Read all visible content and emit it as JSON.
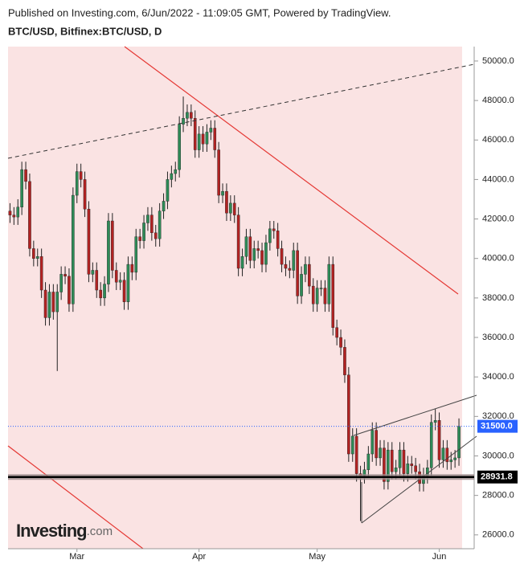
{
  "header": "Published on Investing.com, 6/Jun/2022 - 11:09:05 GMT, Powered by TradingView.",
  "logo": {
    "text": "Investing",
    "suffix": ".com"
  },
  "chart_data": {
    "type": "candlestick",
    "title": "BTC/USD, Bitfinex:BTC/USD, D",
    "categories": [
      null,
      null,
      null,
      null,
      null,
      null,
      null,
      null,
      null,
      null,
      null,
      null,
      null,
      null,
      null,
      null,
      null,
      "Mar",
      null,
      null,
      null,
      null,
      null,
      null,
      null,
      null,
      null,
      null,
      null,
      null,
      null,
      null,
      null,
      null,
      null,
      null,
      null,
      null,
      null,
      null,
      null,
      null,
      null,
      null,
      null,
      null,
      null,
      null,
      "Apr",
      null,
      null,
      null,
      null,
      null,
      null,
      null,
      null,
      null,
      null,
      null,
      null,
      null,
      null,
      null,
      null,
      null,
      null,
      null,
      null,
      null,
      null,
      null,
      null,
      null,
      null,
      null,
      null,
      null,
      "May",
      null,
      null,
      null,
      null,
      null,
      null,
      null,
      null,
      null,
      null,
      null,
      null,
      null,
      null,
      null,
      null,
      null,
      null,
      null,
      null,
      null,
      null,
      null,
      null,
      null,
      null,
      null,
      null,
      null,
      null,
      "Jun",
      null,
      null,
      null,
      null,
      null
    ],
    "open": [
      42400,
      42200,
      42100,
      42600,
      44500,
      43900,
      40500,
      40000,
      40100,
      38400,
      37000,
      38300,
      37300,
      38300,
      39200,
      39100,
      37700,
      43200,
      44400,
      44000,
      42500,
      39200,
      39400,
      38400,
      38000,
      38700,
      41900,
      39400,
      38800,
      38900,
      37800,
      39700,
      39300,
      41100,
      40900,
      41800,
      42200,
      41300,
      41000,
      42400,
      42900,
      44000,
      44300,
      44500,
      46800,
      47100,
      47400,
      47100,
      45500,
      46300,
      45800,
      46400,
      46600,
      45500,
      43200,
      43400,
      42300,
      42800,
      42200,
      39500,
      40100,
      41100,
      39900,
      40500,
      40400,
      39700,
      40800,
      41500,
      41400,
      40500,
      39700,
      39500,
      39400,
      40400,
      38100,
      39200,
      39700,
      38600,
      37700,
      38500,
      38500,
      37700,
      39700,
      36500,
      36000,
      35500,
      34100,
      30100,
      31000,
      29100,
      29000,
      29300,
      30100,
      31300,
      29900,
      30400,
      28700,
      30300,
      29200,
      29400,
      30300,
      29100,
      29600,
      29500,
      29200,
      28600,
      29000,
      29400,
      31700,
      31800,
      29800,
      30400,
      29700,
      29800,
      29900
    ],
    "high": [
      42800,
      42600,
      43000,
      44900,
      44900,
      44300,
      40900,
      40500,
      40500,
      38800,
      38700,
      38700,
      38700,
      39600,
      39600,
      39500,
      43600,
      44800,
      44800,
      44400,
      42900,
      39800,
      39800,
      38800,
      39100,
      42300,
      42300,
      39800,
      39300,
      39300,
      40100,
      40100,
      41500,
      41500,
      42200,
      42600,
      42600,
      41700,
      42800,
      43300,
      44400,
      44700,
      44900,
      47200,
      48200,
      47800,
      47800,
      47500,
      46700,
      46700,
      46800,
      47000,
      47000,
      45900,
      43800,
      43800,
      43200,
      43200,
      42600,
      40500,
      41500,
      41500,
      40900,
      40900,
      40800,
      41200,
      41900,
      41900,
      41800,
      40900,
      40100,
      39900,
      40800,
      40800,
      39600,
      40100,
      40100,
      39000,
      38900,
      38900,
      38900,
      40100,
      40100,
      36900,
      36400,
      35900,
      34500,
      31400,
      31400,
      29500,
      29700,
      30500,
      31700,
      31700,
      30800,
      30800,
      30700,
      30700,
      29800,
      30700,
      30700,
      30000,
      30000,
      29900,
      29600,
      29400,
      29800,
      32100,
      32400,
      32200,
      30800,
      30800,
      30200,
      30300,
      31900
    ],
    "low": [
      41800,
      41700,
      41700,
      42200,
      43500,
      40100,
      39600,
      39600,
      38000,
      36600,
      36600,
      36900,
      34300,
      37900,
      38700,
      37300,
      37300,
      42800,
      43600,
      42100,
      38800,
      38800,
      38000,
      37600,
      37600,
      38300,
      39000,
      38400,
      38400,
      37400,
      37400,
      38900,
      38900,
      40500,
      40500,
      41400,
      40900,
      40600,
      40600,
      42000,
      42500,
      43600,
      43900,
      44100,
      46400,
      46700,
      46700,
      45100,
      45100,
      45400,
      45400,
      46000,
      45100,
      42800,
      42800,
      41900,
      41900,
      41800,
      39100,
      39100,
      39700,
      39500,
      39500,
      40000,
      39300,
      39300,
      40400,
      41000,
      40100,
      39300,
      39100,
      39000,
      39000,
      37700,
      37700,
      38800,
      38200,
      37300,
      37300,
      38100,
      37300,
      37300,
      36100,
      35600,
      35100,
      33700,
      29700,
      29700,
      28700,
      26700,
      28600,
      28900,
      29700,
      29500,
      29500,
      28300,
      28300,
      28800,
      28800,
      29000,
      28700,
      28700,
      29100,
      28800,
      28200,
      28200,
      28600,
      29000,
      31300,
      29400,
      29400,
      29300,
      29300,
      29400,
      29500
    ],
    "close": [
      42200,
      42100,
      42600,
      44500,
      43900,
      40500,
      40000,
      40100,
      38400,
      37000,
      38300,
      37300,
      38300,
      39200,
      39100,
      37700,
      43200,
      44400,
      44000,
      42500,
      39200,
      39400,
      38400,
      38000,
      38700,
      41900,
      39400,
      38800,
      38900,
      37800,
      39700,
      39300,
      41100,
      40900,
      41800,
      42200,
      41300,
      41000,
      42400,
      42900,
      44000,
      44300,
      44500,
      46800,
      47100,
      47400,
      47100,
      45500,
      46300,
      45800,
      46400,
      46600,
      45500,
      43200,
      43400,
      42300,
      42800,
      42200,
      39500,
      40100,
      41100,
      39900,
      40500,
      40400,
      39700,
      40800,
      41500,
      41400,
      40500,
      39700,
      39500,
      39400,
      40400,
      38100,
      39200,
      39700,
      38600,
      37700,
      38500,
      38500,
      37700,
      39700,
      36500,
      36000,
      35500,
      34100,
      30100,
      31000,
      29100,
      29000,
      29300,
      30100,
      31300,
      29900,
      30400,
      28700,
      30300,
      29200,
      29400,
      30300,
      29100,
      29600,
      29500,
      29200,
      28600,
      29000,
      29400,
      31700,
      31800,
      29800,
      30400,
      29700,
      29800,
      29900,
      31500
    ],
    "up_color": "#2e8b57",
    "down_color": "#b22222",
    "ylim": [
      25300,
      50730
    ],
    "yticks": [
      {
        "value": 26000,
        "label": "26000.0"
      },
      {
        "value": 28000,
        "label": "28000.0"
      },
      {
        "value": 30000,
        "label": "30000.0"
      },
      {
        "value": 32000,
        "label": "32000.0"
      },
      {
        "value": 34000,
        "label": "34000.0"
      },
      {
        "value": 36000,
        "label": "36000.0"
      },
      {
        "value": 38000,
        "label": "38000.0"
      },
      {
        "value": 40000,
        "label": "40000.0"
      },
      {
        "value": 42000,
        "label": "42000.0"
      },
      {
        "value": 44000,
        "label": "44000.0"
      },
      {
        "value": 46000,
        "label": "46000.0"
      },
      {
        "value": 48000,
        "label": "48000.0"
      },
      {
        "value": 50000,
        "label": "50000.0"
      }
    ],
    "levels": [
      {
        "value": 31500,
        "label": "31500.0",
        "color": "#2962ff",
        "style": "dotted"
      },
      {
        "value": 28931.8,
        "label": "28931.8",
        "color": "#000000",
        "style": "solid"
      }
    ]
  }
}
